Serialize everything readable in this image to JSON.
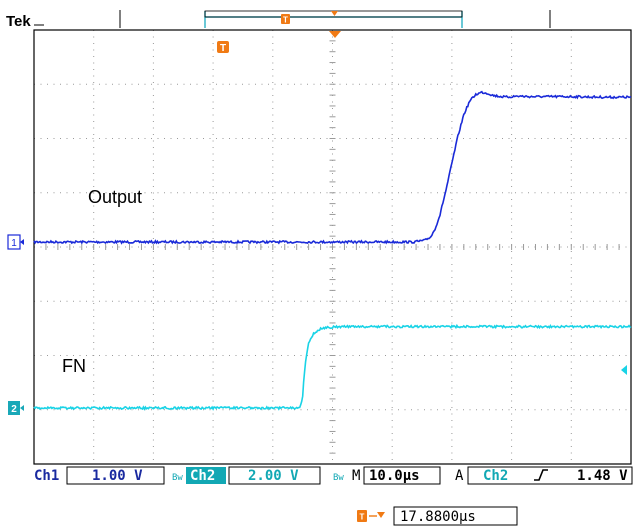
{
  "brand": "Tek",
  "colors": {
    "ch1": "#1a2ad8",
    "ch2": "#19d3e6",
    "trigger": "#f07a14",
    "readout_ch1": "#1a2aa0",
    "readout_ch2": "#12a8b4",
    "grid": "#9a9a9a",
    "frame": "#000000",
    "record_bar": "#39b6c8"
  },
  "record_view": {
    "trigger_icon": "trigger-T-icon",
    "marker_icon": "trigger-position-marker-icon"
  },
  "screen_trigger_icon": "trigger-T-icon",
  "channel_markers": {
    "ch1": "1",
    "ch2": "2"
  },
  "ch2_trigger_level_icon": "trigger-level-arrow-icon",
  "readout": {
    "ch1_label": "Ch1",
    "ch1_scale": "1.00 V",
    "ch2_coupling_icon": "bandwidth-limit-icon",
    "ch2_label": "Ch2",
    "ch2_scale": "2.00 V",
    "timebase_icon": "bandwidth-limit-icon",
    "timebase_label": "M",
    "timebase_value": "10.0µs",
    "acq_label": "A",
    "trigger_source": "Ch2",
    "trigger_slope_icon": "rising-edge-icon",
    "trigger_level": "1.48 V"
  },
  "trigger_position": {
    "icon": "trigger-to-marker-icon",
    "value": "17.8800µs"
  },
  "chart_data": {
    "type": "line",
    "title": "",
    "xlabel": "",
    "ylabel": "",
    "x_divisions": 10,
    "y_divisions": 8,
    "grid": true,
    "series": [
      {
        "name": "Output",
        "channel": 1,
        "x_div": [
          0,
          6.6,
          7.0,
          7.45,
          7.7,
          8.0,
          8.3,
          9.0,
          10.0
        ],
        "y_div": [
          -0.04,
          -0.04,
          0.6,
          2.58,
          2.68,
          2.57,
          2.62,
          2.6,
          2.6
        ],
        "x_points_div": [
          0,
          1.2,
          2.4,
          3.6,
          4.8,
          5.6,
          6.0,
          6.35,
          6.55,
          6.65,
          6.72,
          6.8,
          6.9,
          7.0,
          7.1,
          7.2,
          7.3,
          7.4,
          7.5,
          7.6,
          7.7,
          7.9,
          8.1,
          8.3,
          8.6,
          9.0,
          9.5,
          10.0
        ],
        "y_points_div": [
          0.0,
          0.0,
          0.0,
          0.0,
          0.0,
          0.0,
          0.0,
          0.0,
          0.03,
          0.1,
          0.25,
          0.5,
          0.95,
          1.45,
          1.95,
          2.35,
          2.6,
          2.72,
          2.76,
          2.74,
          2.7,
          2.67,
          2.69,
          2.68,
          2.68,
          2.68,
          2.67,
          2.67
        ]
      },
      {
        "name": "FN",
        "channel": 2,
        "x_points_div": [
          0,
          1.5,
          3.0,
          4.45,
          4.5,
          4.52,
          4.56,
          4.6,
          4.68,
          4.78,
          4.9,
          5.1,
          5.5,
          6.0,
          7.0,
          8.0,
          9.0,
          10.0
        ],
        "y_points_div": [
          0.0,
          0.0,
          0.0,
          0.0,
          0.2,
          0.55,
          0.95,
          1.2,
          1.37,
          1.45,
          1.48,
          1.5,
          1.5,
          1.5,
          1.5,
          1.5,
          1.5,
          1.5
        ]
      }
    ]
  }
}
